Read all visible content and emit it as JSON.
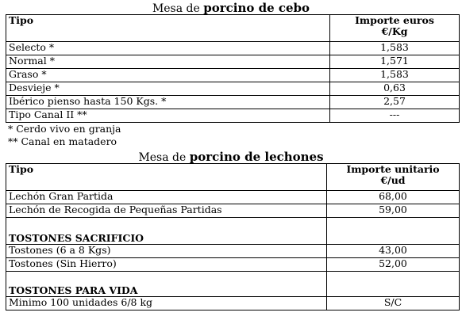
{
  "cebo": {
    "title_prefix": "Mesa de ",
    "title_bold": "porcino de cebo",
    "header_tipo": "Tipo",
    "header_importe": "Importe euros",
    "header_unit": "€/Kg",
    "rows": [
      {
        "tipo": "Selecto *",
        "valor": "1,583"
      },
      {
        "tipo": "Normal *",
        "valor": "1,571"
      },
      {
        "tipo": "Graso *",
        "valor": "1,583"
      },
      {
        "tipo": "Desvieje *",
        "valor": "0,63"
      },
      {
        "tipo": "Ibérico pienso hasta 150 Kgs. *",
        "valor": "2,57"
      },
      {
        "tipo": "Tipo Canal II **",
        "valor": "---"
      }
    ],
    "notes": [
      "* Cerdo vivo en granja",
      "** Canal en matadero"
    ]
  },
  "lechones": {
    "title_prefix": "Mesa de ",
    "title_bold": "porcino de lechones",
    "header_tipo": "Tipo",
    "header_importe": "Importe unitario",
    "header_unit": "€/ud",
    "rows": [
      {
        "tipo": "Lechón Gran Partida",
        "valor": "68,00"
      },
      {
        "tipo": "Lechón de Recogida de Pequeñas Partidas",
        "valor": "59,00"
      }
    ],
    "section_sacrificio": "TOSTONES SACRIFICIO",
    "rows_sacrificio": [
      {
        "tipo": "Tostones (6 a 8 Kgs)",
        "valor": "43,00"
      },
      {
        "tipo": "Tostones  (Sin Hierro)",
        "valor": "52,00"
      }
    ],
    "section_vida": "TOSTONES PARA VIDA",
    "rows_vida": [
      {
        "tipo": "Minimo 100 unidades 6/8 kg",
        "valor": "S/C"
      }
    ]
  }
}
